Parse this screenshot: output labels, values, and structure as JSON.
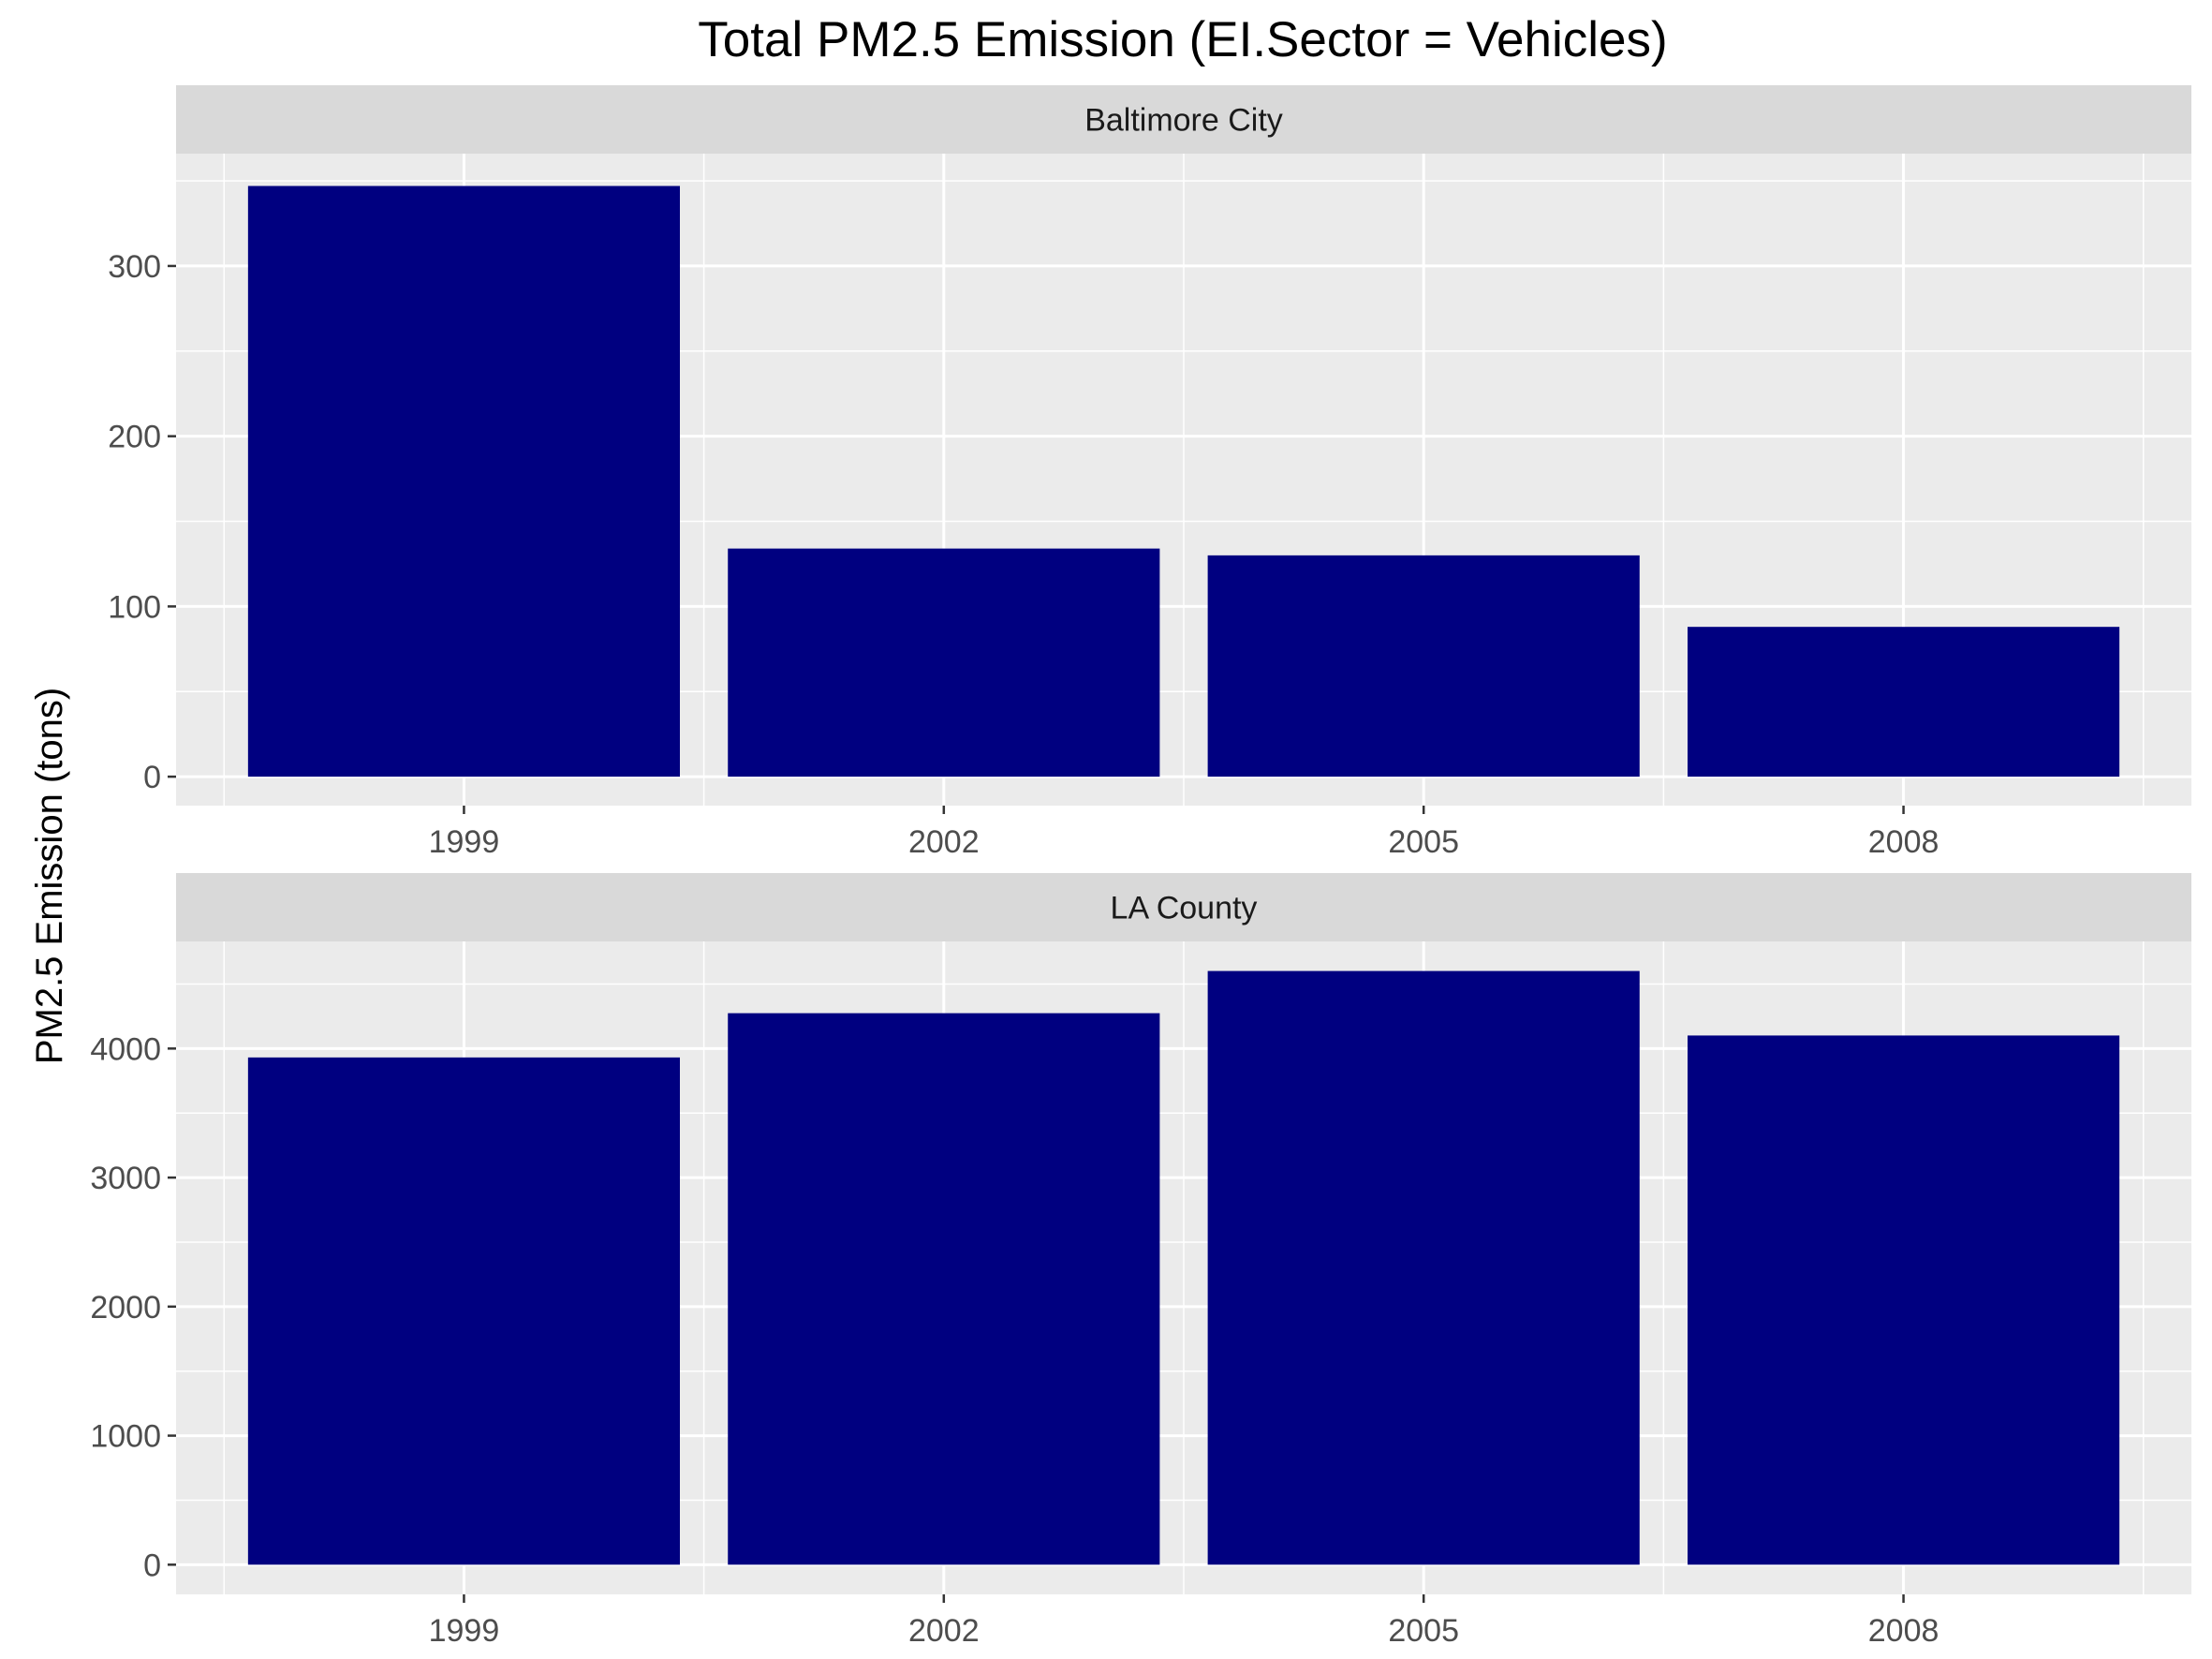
{
  "chart_data": {
    "type": "bar",
    "title": "Total PM2.5 Emission (EI.Sector = Vehicles)",
    "ylabel": "PM2.5 Emission (tons)",
    "xlabel": "",
    "categories": [
      "1999",
      "2002",
      "2005",
      "2008"
    ],
    "bar_color": "#000080",
    "panel_background": "#EBEBEB",
    "strip_background": "#D9D9D9",
    "grid": true,
    "legend": "none",
    "facets": [
      {
        "name": "Baltimore City",
        "values": [
          347,
          134,
          130,
          88
        ],
        "ylim": [
          -17,
          366
        ],
        "yticks": [
          0,
          100,
          200,
          300
        ],
        "ytick_labels": [
          "0",
          "100",
          "200",
          "300"
        ]
      },
      {
        "name": "LA County",
        "values": [
          3931,
          4274,
          4601,
          4101
        ],
        "ylim": [
          -230,
          4830
        ],
        "yticks": [
          0,
          1000,
          2000,
          3000,
          4000
        ],
        "ytick_labels": [
          "0",
          "1000",
          "2000",
          "3000",
          "4000"
        ]
      }
    ]
  }
}
